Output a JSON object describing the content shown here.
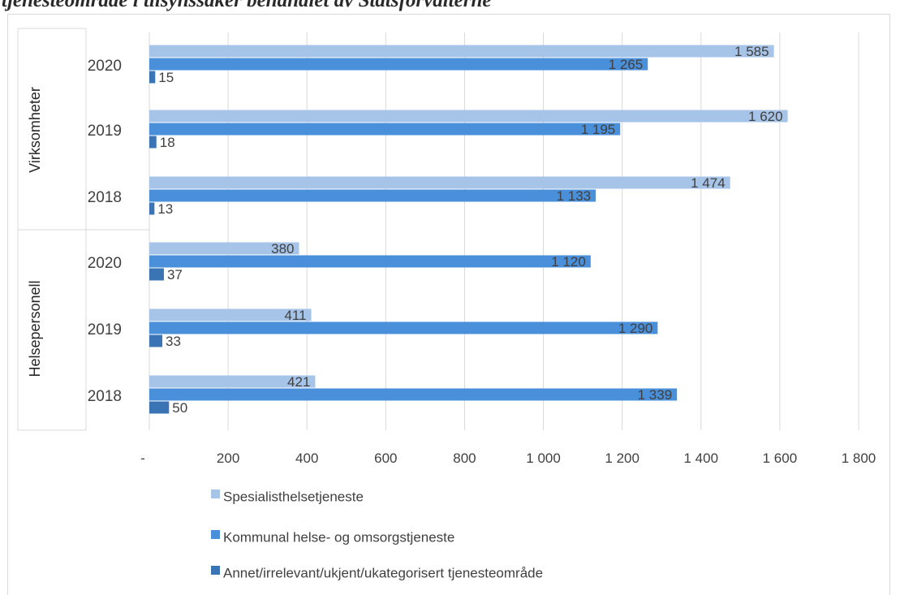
{
  "title": "tjenesteområde i tilsynssaker behandlet av Statsforvalterne",
  "chart_data": {
    "type": "bar",
    "orientation": "horizontal",
    "groups": [
      {
        "name": "Virksomheter",
        "categories": [
          "2020",
          "2019",
          "2018"
        ]
      },
      {
        "name": "Helsepersonell",
        "categories": [
          "2020",
          "2019",
          "2018"
        ]
      }
    ],
    "series": [
      {
        "name": "Spesialisthelsetjeneste",
        "color": "#a6c3e8",
        "values": [
          1585,
          1620,
          1474,
          380,
          411,
          421
        ],
        "labels": [
          "1 585",
          "1 620",
          "1 474",
          "380",
          "411",
          "421"
        ]
      },
      {
        "name": "Kommunal helse- og omsorgstjeneste",
        "color": "#4a8fd9",
        "values": [
          1265,
          1195,
          1133,
          1120,
          1290,
          1339
        ],
        "labels": [
          "1 265",
          "1 195",
          "1 133",
          "1 120",
          "1 290",
          "1 339"
        ]
      },
      {
        "name": "Annet/irrelevant/ukjent/ukategorisert tjenesteområde",
        "color": "#3b74b5",
        "values": [
          15,
          18,
          13,
          37,
          33,
          50
        ],
        "labels": [
          "15",
          "18",
          "13",
          "37",
          "33",
          "50"
        ]
      }
    ],
    "xlim": [
      0,
      1800
    ],
    "xticks": [
      0,
      200,
      400,
      600,
      800,
      1000,
      1200,
      1400,
      1600,
      1800
    ],
    "xtick_labels": [
      "-",
      "200",
      "400",
      "600",
      "800",
      "1 000",
      "1 200",
      "1 400",
      "1 600",
      "1 800"
    ],
    "grid": true,
    "legend_position": "bottom",
    "label_color": "#404040",
    "grid_color": "#d9d9d9"
  }
}
